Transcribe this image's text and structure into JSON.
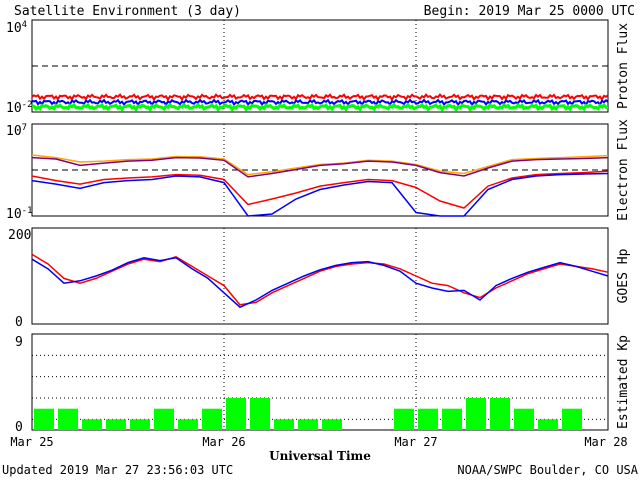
{
  "header": {
    "title": "Satellite Environment (3 day)",
    "begin": "Begin:  2019 Mar 25 0000 UTC"
  },
  "footer": {
    "updated": "Updated 2019 Mar 27 23:56:03 UTC",
    "credit": "NOAA/SWPC Boulder, CO USA"
  },
  "xaxis": {
    "title": "Universal Time",
    "ticks": [
      "Mar 25",
      "Mar 26",
      "Mar 27",
      "Mar 28"
    ]
  },
  "colors": {
    "red": "#ff0000",
    "blue": "#0000ff",
    "green": "#00ff00",
    "orange": "#ffa500",
    "purple": "#800080",
    "kp_bar": "#00ff00"
  },
  "chart_data": [
    {
      "type": "line",
      "ylabel": "Proton Flux",
      "yscale": "log",
      "ylim": [
        0.01,
        10000
      ],
      "yticks": [
        {
          "base": "10",
          "exp": "4"
        },
        {
          "base": "10",
          "exp": "-2"
        }
      ],
      "threshold": 10,
      "series": [
        {
          "color": "red",
          "level": 0.1
        },
        {
          "color": "blue",
          "level": 0.045
        },
        {
          "color": "green",
          "level": 0.022
        }
      ]
    },
    {
      "type": "line",
      "ylabel": "Electron Flux",
      "yscale": "log",
      "ylim": [
        0.1,
        10000000
      ],
      "yticks": [
        {
          "base": "10",
          "exp": "7"
        },
        {
          "base": "10",
          "exp": "-1"
        }
      ],
      "threshold": 1000,
      "series": [
        {
          "color": "orange",
          "x": [
            0,
            3,
            6,
            9,
            12,
            15,
            18,
            21,
            24,
            27,
            30,
            33,
            36,
            39,
            42,
            45,
            48,
            51,
            54,
            57,
            60,
            63,
            66,
            69,
            72
          ],
          "y": [
            20000,
            12000,
            5000,
            6000,
            8000,
            9000,
            15000,
            14000,
            9000,
            400,
            700,
            1500,
            3000,
            4000,
            7000,
            6000,
            3000,
            800,
            500,
            2000,
            8000,
            10000,
            12000,
            14000,
            18000
          ]
        },
        {
          "color": "purple",
          "x": [
            0,
            3,
            6,
            9,
            12,
            15,
            18,
            21,
            24,
            27,
            30,
            33,
            36,
            39,
            42,
            45,
            48,
            51,
            54,
            57,
            60,
            63,
            66,
            69,
            72
          ],
          "y": [
            12000,
            9000,
            2500,
            4000,
            6000,
            7000,
            12000,
            11000,
            7000,
            250,
            500,
            1100,
            2500,
            3500,
            6000,
            5000,
            2500,
            600,
            300,
            1500,
            6000,
            8000,
            9000,
            10000,
            12000
          ]
        },
        {
          "color": "red",
          "x": [
            0,
            3,
            6,
            9,
            12,
            15,
            18,
            21,
            24,
            27,
            30,
            33,
            36,
            39,
            42,
            45,
            48,
            51,
            54,
            57,
            60,
            63,
            66,
            69,
            72
          ],
          "y": [
            300,
            120,
            60,
            150,
            200,
            250,
            400,
            350,
            150,
            1,
            3,
            10,
            40,
            80,
            150,
            120,
            30,
            2,
            0.5,
            40,
            200,
            400,
            500,
            600,
            800
          ]
        },
        {
          "color": "blue",
          "x": [
            0,
            3,
            6,
            9,
            12,
            15,
            18,
            21,
            24,
            27,
            30,
            33,
            36,
            39,
            42,
            45,
            48,
            51,
            54,
            57,
            60,
            63,
            66,
            69,
            72
          ],
          "y": [
            120,
            60,
            25,
            80,
            120,
            150,
            300,
            250,
            80,
            0.1,
            0.15,
            3,
            20,
            50,
            100,
            80,
            0.2,
            0.1,
            0.1,
            20,
            150,
            300,
            400,
            450,
            500
          ]
        }
      ]
    },
    {
      "type": "line",
      "ylabel": "GOES Hp",
      "ylim": [
        0,
        200
      ],
      "yticks": [
        "200",
        "0"
      ],
      "series": [
        {
          "color": "red",
          "x": [
            0,
            2,
            4,
            6,
            8,
            10,
            12,
            14,
            16,
            18,
            20,
            22,
            24,
            26,
            28,
            30,
            32,
            34,
            36,
            38,
            40,
            42,
            44,
            46,
            48,
            50,
            52,
            54,
            56,
            58,
            60,
            62,
            64,
            66,
            68,
            70,
            72
          ],
          "y": [
            145,
            125,
            95,
            85,
            95,
            110,
            125,
            135,
            130,
            140,
            120,
            100,
            80,
            40,
            45,
            65,
            80,
            95,
            110,
            120,
            125,
            128,
            125,
            115,
            100,
            85,
            80,
            65,
            55,
            75,
            90,
            105,
            115,
            125,
            120,
            115,
            108
          ]
        },
        {
          "color": "blue",
          "x": [
            0,
            2,
            4,
            6,
            8,
            10,
            12,
            14,
            16,
            18,
            20,
            22,
            24,
            26,
            28,
            30,
            32,
            34,
            36,
            38,
            40,
            42,
            44,
            46,
            48,
            50,
            52,
            54,
            56,
            58,
            60,
            62,
            64,
            66,
            68,
            70,
            72
          ],
          "y": [
            135,
            115,
            85,
            90,
            100,
            112,
            128,
            138,
            132,
            138,
            115,
            95,
            65,
            35,
            50,
            70,
            85,
            100,
            113,
            122,
            128,
            130,
            122,
            110,
            85,
            75,
            68,
            70,
            50,
            80,
            95,
            108,
            118,
            128,
            120,
            110,
            100
          ]
        }
      ]
    },
    {
      "type": "bar",
      "ylabel": "Estimated Kp",
      "ylim": [
        0,
        9
      ],
      "yticks": [
        "9",
        "0"
      ],
      "categories": [
        "00",
        "03",
        "06",
        "09",
        "12",
        "15",
        "18",
        "21",
        "00",
        "03",
        "06",
        "09",
        "12",
        "15",
        "18",
        "21",
        "00",
        "03",
        "06",
        "09",
        "12",
        "15",
        "18",
        "21"
      ],
      "values": [
        2,
        2,
        1,
        1,
        1,
        2,
        1,
        2,
        3,
        3,
        1,
        1,
        1,
        0,
        0,
        2,
        2,
        2,
        3,
        3,
        2,
        1,
        2,
        0
      ]
    }
  ]
}
